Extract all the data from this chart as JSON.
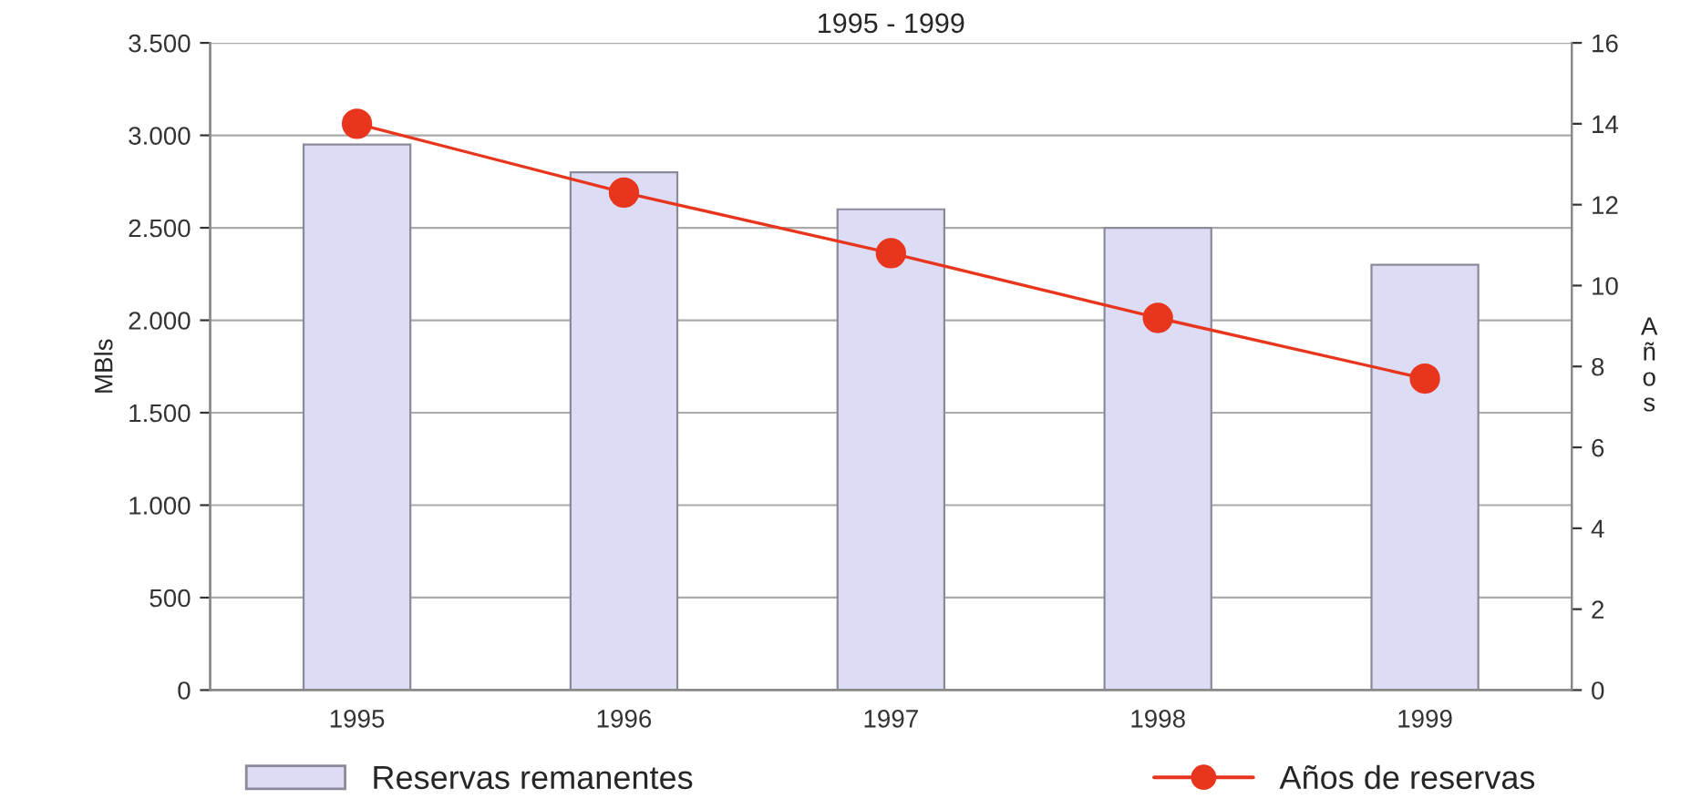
{
  "chart_data": {
    "type": "bar",
    "title": "1995 - 1999",
    "ylabel": "MBls",
    "y2label": "A\nñ\no\ns",
    "categories": [
      "1995",
      "1996",
      "1997",
      "1998",
      "1999"
    ],
    "series": [
      {
        "name": "Reservas remanentes",
        "color": "#dcdcf4",
        "values": [
          2950,
          2800,
          2600,
          2500,
          2300
        ]
      },
      {
        "name": "Años de reservas",
        "type": "line",
        "axis": "y2",
        "color": "#e8361e",
        "values": [
          14.0,
          12.3,
          10.8,
          9.2,
          7.7
        ]
      }
    ],
    "ylim": [
      0,
      3500
    ],
    "yticks": [
      {
        "value": 0,
        "label": "0"
      },
      {
        "value": 500,
        "label": "500"
      },
      {
        "value": 1000,
        "label": "1.000"
      },
      {
        "value": 1500,
        "label": "1.500"
      },
      {
        "value": 2000,
        "label": "2.000"
      },
      {
        "value": 2500,
        "label": "2.500"
      },
      {
        "value": 3000,
        "label": "3.000"
      },
      {
        "value": 3500,
        "label": "3.500"
      }
    ],
    "y2lim": [
      0,
      16
    ],
    "y2ticks": [
      0,
      2,
      4,
      6,
      8,
      10,
      12,
      14,
      16
    ],
    "grid": "y",
    "legend": "bottom",
    "marker": "circle",
    "line_style": "solid"
  }
}
